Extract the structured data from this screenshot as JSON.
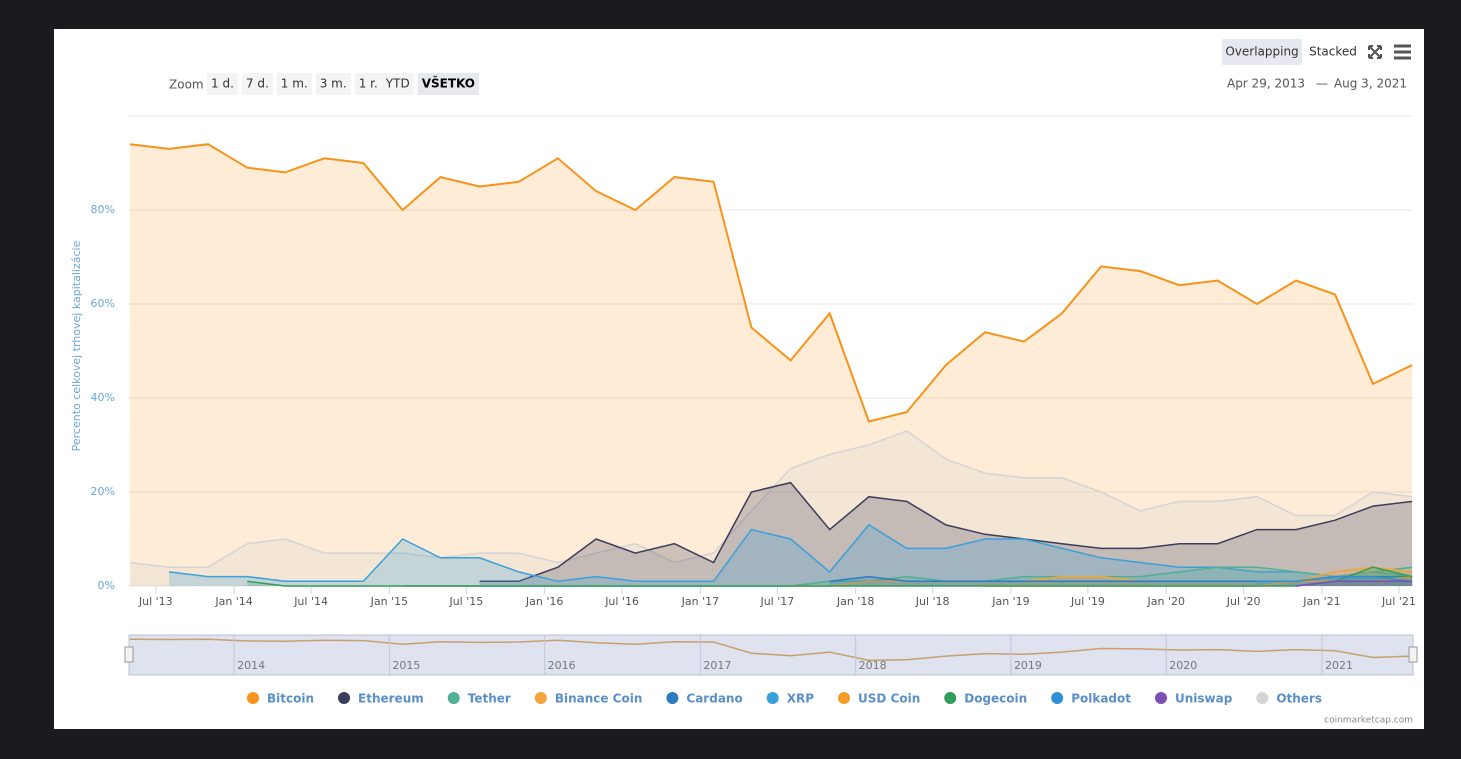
{
  "toolbar": {
    "zoom_label": "Zoom",
    "zoom_buttons": [
      "1 d.",
      "7 d.",
      "1 m.",
      "3 m.",
      "1 r.",
      "YTD",
      "VŠETKO"
    ],
    "modes": [
      "Overlapping",
      "Stacked"
    ],
    "range_labels": [
      "Apr 29, 2013",
      "Aug 3, 2021"
    ],
    "range_separator": "—"
  },
  "credit": "coinmarketcap.com",
  "chart_data": {
    "type": "area",
    "y_label": "Percento celkovej trhovej kapitalizácie",
    "xlim": [
      "2013-04-29",
      "2021-08-03"
    ],
    "ylim": [
      0,
      100
    ],
    "grid": true,
    "yticks": [
      {
        "value": 0,
        "label": "0%"
      },
      {
        "value": 20,
        "label": "20%"
      },
      {
        "value": 40,
        "label": "40%"
      },
      {
        "value": 60,
        "label": "60%"
      },
      {
        "value": 80,
        "label": "80%"
      }
    ],
    "xticks": [
      {
        "value": "2013-07",
        "label": "Jul '13"
      },
      {
        "value": "2014-01",
        "label": "Jan '14"
      },
      {
        "value": "2014-07",
        "label": "Jul '14"
      },
      {
        "value": "2015-01",
        "label": "Jan '15"
      },
      {
        "value": "2015-07",
        "label": "Jul '15"
      },
      {
        "value": "2016-01",
        "label": "Jan '16"
      },
      {
        "value": "2016-07",
        "label": "Jul '16"
      },
      {
        "value": "2017-01",
        "label": "Jan '17"
      },
      {
        "value": "2017-07",
        "label": "Jul '17"
      },
      {
        "value": "2018-01",
        "label": "Jan '18"
      },
      {
        "value": "2018-07",
        "label": "Jul '18"
      },
      {
        "value": "2019-01",
        "label": "Jan '19"
      },
      {
        "value": "2019-07",
        "label": "Jul '19"
      },
      {
        "value": "2020-01",
        "label": "Jan '20"
      },
      {
        "value": "2020-07",
        "label": "Jul '20"
      },
      {
        "value": "2021-01",
        "label": "Jan '21"
      },
      {
        "value": "2021-07",
        "label": "Jul '21"
      }
    ],
    "navigator_ticks": [
      {
        "value": "2014-01",
        "label": "2014"
      },
      {
        "value": "2015-01",
        "label": "2015"
      },
      {
        "value": "2016-01",
        "label": "2016"
      },
      {
        "value": "2017-01",
        "label": "2017"
      },
      {
        "value": "2018-01",
        "label": "2018"
      },
      {
        "value": "2019-01",
        "label": "2019"
      },
      {
        "value": "2020-01",
        "label": "2020"
      },
      {
        "value": "2021-01",
        "label": "2021"
      }
    ],
    "x": [
      "2013-05",
      "2013-08",
      "2013-11",
      "2014-02",
      "2014-05",
      "2014-08",
      "2014-11",
      "2015-02",
      "2015-05",
      "2015-08",
      "2015-11",
      "2016-02",
      "2016-05",
      "2016-08",
      "2016-11",
      "2017-02",
      "2017-05",
      "2017-08",
      "2017-11",
      "2018-02",
      "2018-05",
      "2018-08",
      "2018-11",
      "2019-02",
      "2019-05",
      "2019-08",
      "2019-11",
      "2020-02",
      "2020-05",
      "2020-08",
      "2020-11",
      "2021-02",
      "2021-05",
      "2021-08"
    ],
    "series": [
      {
        "name": "Bitcoin",
        "color": "#f7931a",
        "values": [
          94,
          93,
          94,
          89,
          88,
          91,
          90,
          80,
          87,
          85,
          86,
          91,
          84,
          80,
          87,
          86,
          55,
          48,
          58,
          35,
          37,
          47,
          54,
          52,
          58,
          68,
          67,
          64,
          65,
          60,
          65,
          62,
          43,
          47
        ]
      },
      {
        "name": "Ethereum",
        "color": "#3c3c5d",
        "values": [
          null,
          null,
          null,
          null,
          null,
          null,
          null,
          null,
          null,
          1,
          1,
          4,
          10,
          7,
          9,
          5,
          20,
          22,
          12,
          19,
          18,
          13,
          11,
          10,
          9,
          8,
          8,
          9,
          9,
          12,
          12,
          14,
          17,
          18
        ]
      },
      {
        "name": "Tether",
        "color": "#50af95",
        "values": [
          null,
          null,
          null,
          null,
          null,
          null,
          null,
          0,
          0,
          0,
          0,
          0,
          0,
          0,
          0,
          0,
          0,
          0,
          1,
          1,
          2,
          1,
          1,
          2,
          2,
          2,
          2,
          3,
          4,
          4,
          3,
          2,
          3,
          4
        ]
      },
      {
        "name": "Binance Coin",
        "color": "#f3a43a",
        "values": [
          null,
          null,
          null,
          null,
          null,
          null,
          null,
          null,
          null,
          null,
          null,
          null,
          null,
          null,
          null,
          null,
          null,
          0,
          0,
          1,
          1,
          1,
          1,
          1,
          2,
          2,
          1,
          1,
          1,
          1,
          1,
          3,
          4,
          3
        ]
      },
      {
        "name": "Cardano",
        "color": "#2e7cc0",
        "values": [
          null,
          null,
          null,
          null,
          null,
          null,
          null,
          null,
          null,
          null,
          null,
          null,
          null,
          null,
          null,
          null,
          null,
          null,
          1,
          2,
          1,
          1,
          1,
          1,
          1,
          1,
          1,
          1,
          1,
          1,
          1,
          2,
          2,
          2
        ]
      },
      {
        "name": "XRP",
        "color": "#3aa0db",
        "values": [
          null,
          3,
          2,
          2,
          1,
          1,
          1,
          10,
          6,
          6,
          3,
          1,
          2,
          1,
          1,
          1,
          12,
          10,
          3,
          13,
          8,
          8,
          10,
          10,
          8,
          6,
          5,
          4,
          4,
          3,
          3,
          2,
          3,
          2
        ]
      },
      {
        "name": "USD Coin",
        "color": "#f39c2a",
        "values": [
          null,
          null,
          null,
          null,
          null,
          null,
          null,
          null,
          null,
          null,
          null,
          null,
          null,
          null,
          null,
          null,
          null,
          null,
          null,
          null,
          null,
          null,
          0,
          0,
          0,
          0,
          0,
          0,
          0,
          0,
          1,
          1,
          1,
          2
        ]
      },
      {
        "name": "Dogecoin",
        "color": "#2f9e58",
        "values": [
          null,
          null,
          null,
          1,
          0,
          0,
          0,
          0,
          0,
          0,
          0,
          0,
          0,
          0,
          0,
          0,
          0,
          0,
          0,
          0,
          0,
          0,
          0,
          0,
          0,
          0,
          0,
          0,
          0,
          0,
          0,
          1,
          4,
          2
        ]
      },
      {
        "name": "Polkadot",
        "color": "#2f8fd6",
        "values": [
          null,
          null,
          null,
          null,
          null,
          null,
          null,
          null,
          null,
          null,
          null,
          null,
          null,
          null,
          null,
          null,
          null,
          null,
          null,
          null,
          null,
          null,
          null,
          null,
          null,
          null,
          null,
          null,
          null,
          1,
          1,
          2,
          2,
          1
        ]
      },
      {
        "name": "Uniswap",
        "color": "#7b4fb6",
        "values": [
          null,
          null,
          null,
          null,
          null,
          null,
          null,
          null,
          null,
          null,
          null,
          null,
          null,
          null,
          null,
          null,
          null,
          null,
          null,
          null,
          null,
          null,
          null,
          null,
          null,
          null,
          null,
          null,
          null,
          null,
          0,
          1,
          1,
          1
        ]
      },
      {
        "name": "Others",
        "color": "#d4d4d4",
        "values": [
          5,
          4,
          4,
          9,
          10,
          7,
          7,
          7,
          6,
          7,
          7,
          5,
          7,
          9,
          5,
          7,
          16,
          25,
          28,
          30,
          33,
          27,
          24,
          23,
          23,
          20,
          16,
          18,
          18,
          19,
          15,
          15,
          20,
          19
        ]
      }
    ]
  }
}
